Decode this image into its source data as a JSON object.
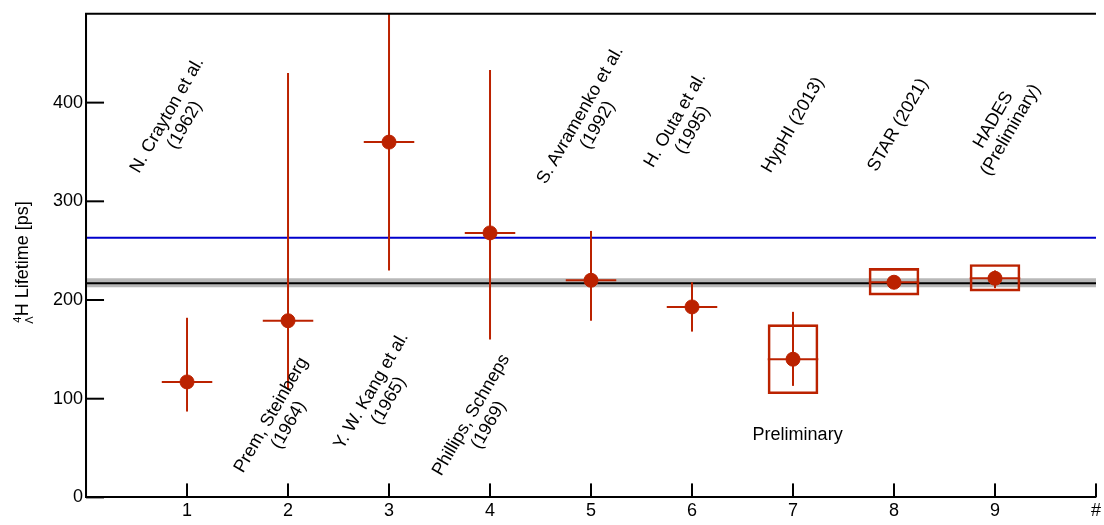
{
  "chart_data": {
    "type": "scatter",
    "ylabel": "$^{4}$$_{Λ}$H Lifetime [ps]",
    "xlim": [
      0,
      10
    ],
    "xticks": [
      1,
      2,
      3,
      4,
      5,
      6,
      7,
      8,
      9,
      {
        "value": 10,
        "label": "#"
      }
    ],
    "ylim": [
      0,
      490
    ],
    "yticks": [
      0,
      100,
      200,
      300,
      400
    ],
    "grid": false,
    "legend": false,
    "marker": "circle",
    "series": [
      {
        "color": "#bb2200",
        "x": [
          1,
          2,
          3,
          4,
          5,
          6,
          7,
          8,
          9
        ],
        "values": [
          117,
          179,
          360,
          268,
          220,
          193,
          140,
          218,
          222
        ],
        "errors": [
          [
            87,
            182
          ],
          [
            109,
            430
          ],
          [
            230,
            490
          ],
          [
            160,
            433
          ],
          [
            179,
            270
          ],
          [
            168,
            218
          ],
          [
            113,
            188
          ],
          null,
          [
            212,
            230
          ]
        ],
        "xerrors": [
          0.25,
          0.25,
          0.25,
          0.25,
          0.25,
          0.25,
          0.25,
          0.25,
          0.25
        ]
      },
      {
        "type": "bar",
        "color": "#bb2200",
        "x": [
          7,
          8,
          9
        ],
        "base": [
          105,
          205,
          209
        ],
        "values": [
          70,
          27,
          27
        ]
      }
    ],
    "ref_lines": [
      {
        "axis": "y",
        "value": 263,
        "color": "#0000cc"
      },
      {
        "axis": "y",
        "value": 217,
        "color": "#000000"
      }
    ],
    "bands": [
      {
        "axis": "y",
        "from": 213,
        "to": 222,
        "color": "#b8b8b8"
      }
    ],
    "annotations": [
      "N. Crayton et al.\n(1962)",
      "Prem, Steinberg\n(1964)",
      "Y. W. Kang et al.\n(1965)",
      "Phillips, Schneps\n(1969)",
      "S. Avramenko et al.\n(1992)",
      "H. Outa et al.\n(1995)",
      "HypHI (2013)",
      "STAR (2021)",
      "HADES\n(Preliminary)",
      "Preliminary"
    ]
  }
}
